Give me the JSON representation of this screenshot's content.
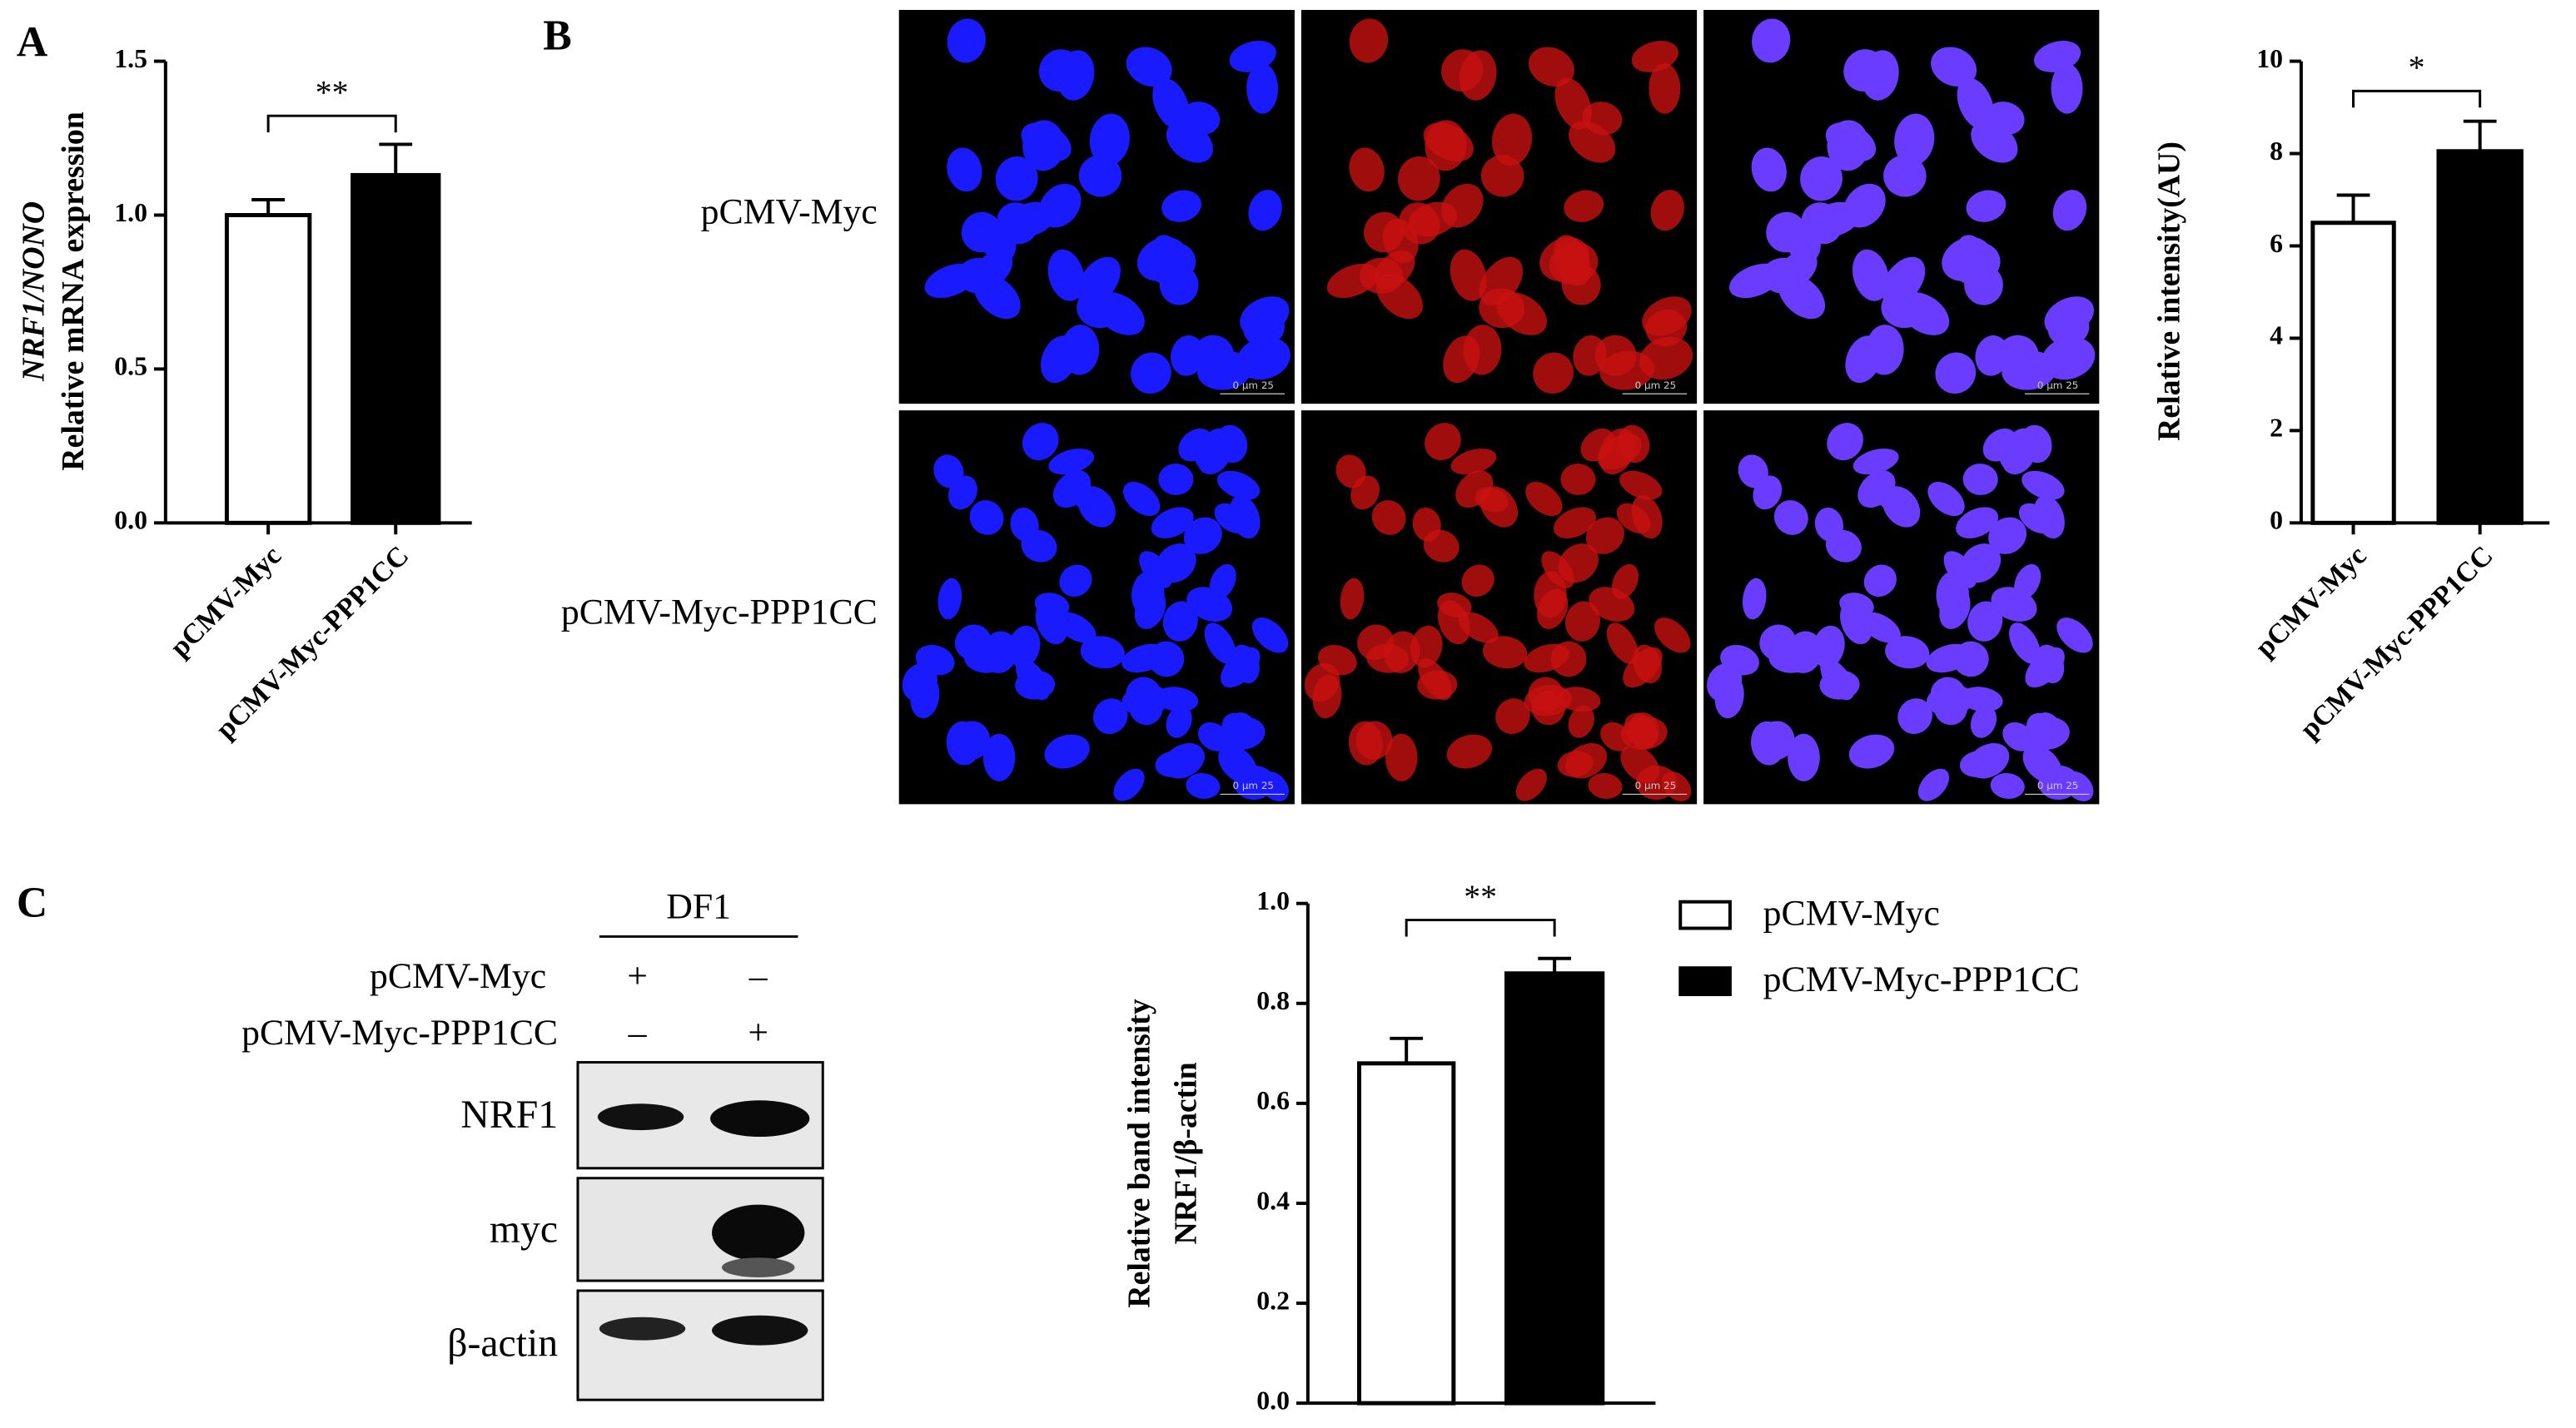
{
  "panels": [
    "A",
    "B",
    "C"
  ],
  "microscopy": {
    "rows": [
      "pCMV-Myc",
      "pCMV-Myc-PPP1CC"
    ],
    "scale_label": "0    μm    25"
  },
  "blot": {
    "cell_line": "DF1",
    "conditions": [
      {
        "name": "pCMV-Myc",
        "marks": [
          "+",
          "–"
        ]
      },
      {
        "name": "pCMV-Myc-PPP1CC",
        "marks": [
          "–",
          "+"
        ]
      }
    ],
    "bands": [
      "NRF1",
      "myc",
      "β-actin"
    ]
  },
  "chart_data": [
    {
      "type": "bar",
      "ylabel": [
        "NRF1/NONO",
        "Relative mRNA expression"
      ],
      "categories": [
        "pCMV-Myc",
        "pCMV-Myc-PPP1CC"
      ],
      "values": [
        1.0,
        1.13
      ],
      "errors": [
        0.05,
        0.1
      ],
      "colors": [
        "#ffffff",
        "#000000"
      ],
      "ylim": [
        0,
        1.5
      ],
      "yticks": [
        {
          "value": 0,
          "label": "0.0"
        },
        {
          "value": 0.5,
          "label": "0.5"
        },
        {
          "value": 1,
          "label": "1.0"
        },
        {
          "value": 1.5,
          "label": "1.5"
        }
      ],
      "significance": "**",
      "legend": false
    },
    {
      "type": "bar",
      "ylabel": [
        "Relative intensity(AU)"
      ],
      "categories": [
        "pCMV-Myc",
        "pCMV-Myc-PPP1CC"
      ],
      "values": [
        6.5,
        8.05
      ],
      "errors": [
        0.6,
        0.65
      ],
      "colors": [
        "#ffffff",
        "#000000"
      ],
      "ylim": [
        0,
        10
      ],
      "yticks": [
        0,
        2,
        4,
        6,
        8,
        10
      ],
      "significance": "*",
      "legend": false
    },
    {
      "type": "bar",
      "ylabel": [
        "Relative band intensity",
        "NRF1/β-actin"
      ],
      "categories": [
        "pCMV-Myc",
        "pCMV-Myc-PPP1CC"
      ],
      "values": [
        0.68,
        0.86
      ],
      "errors": [
        0.05,
        0.03
      ],
      "colors": [
        "#ffffff",
        "#000000"
      ],
      "ylim": [
        0,
        1.0
      ],
      "yticks": [
        {
          "value": 0,
          "label": "0.0"
        },
        {
          "value": 0.2,
          "label": "0.2"
        },
        {
          "value": 0.4,
          "label": "0.4"
        },
        {
          "value": 0.6,
          "label": "0.6"
        },
        {
          "value": 0.8,
          "label": "0.8"
        },
        {
          "value": 1,
          "label": "1.0"
        }
      ],
      "significance": "**",
      "legend": true
    }
  ]
}
